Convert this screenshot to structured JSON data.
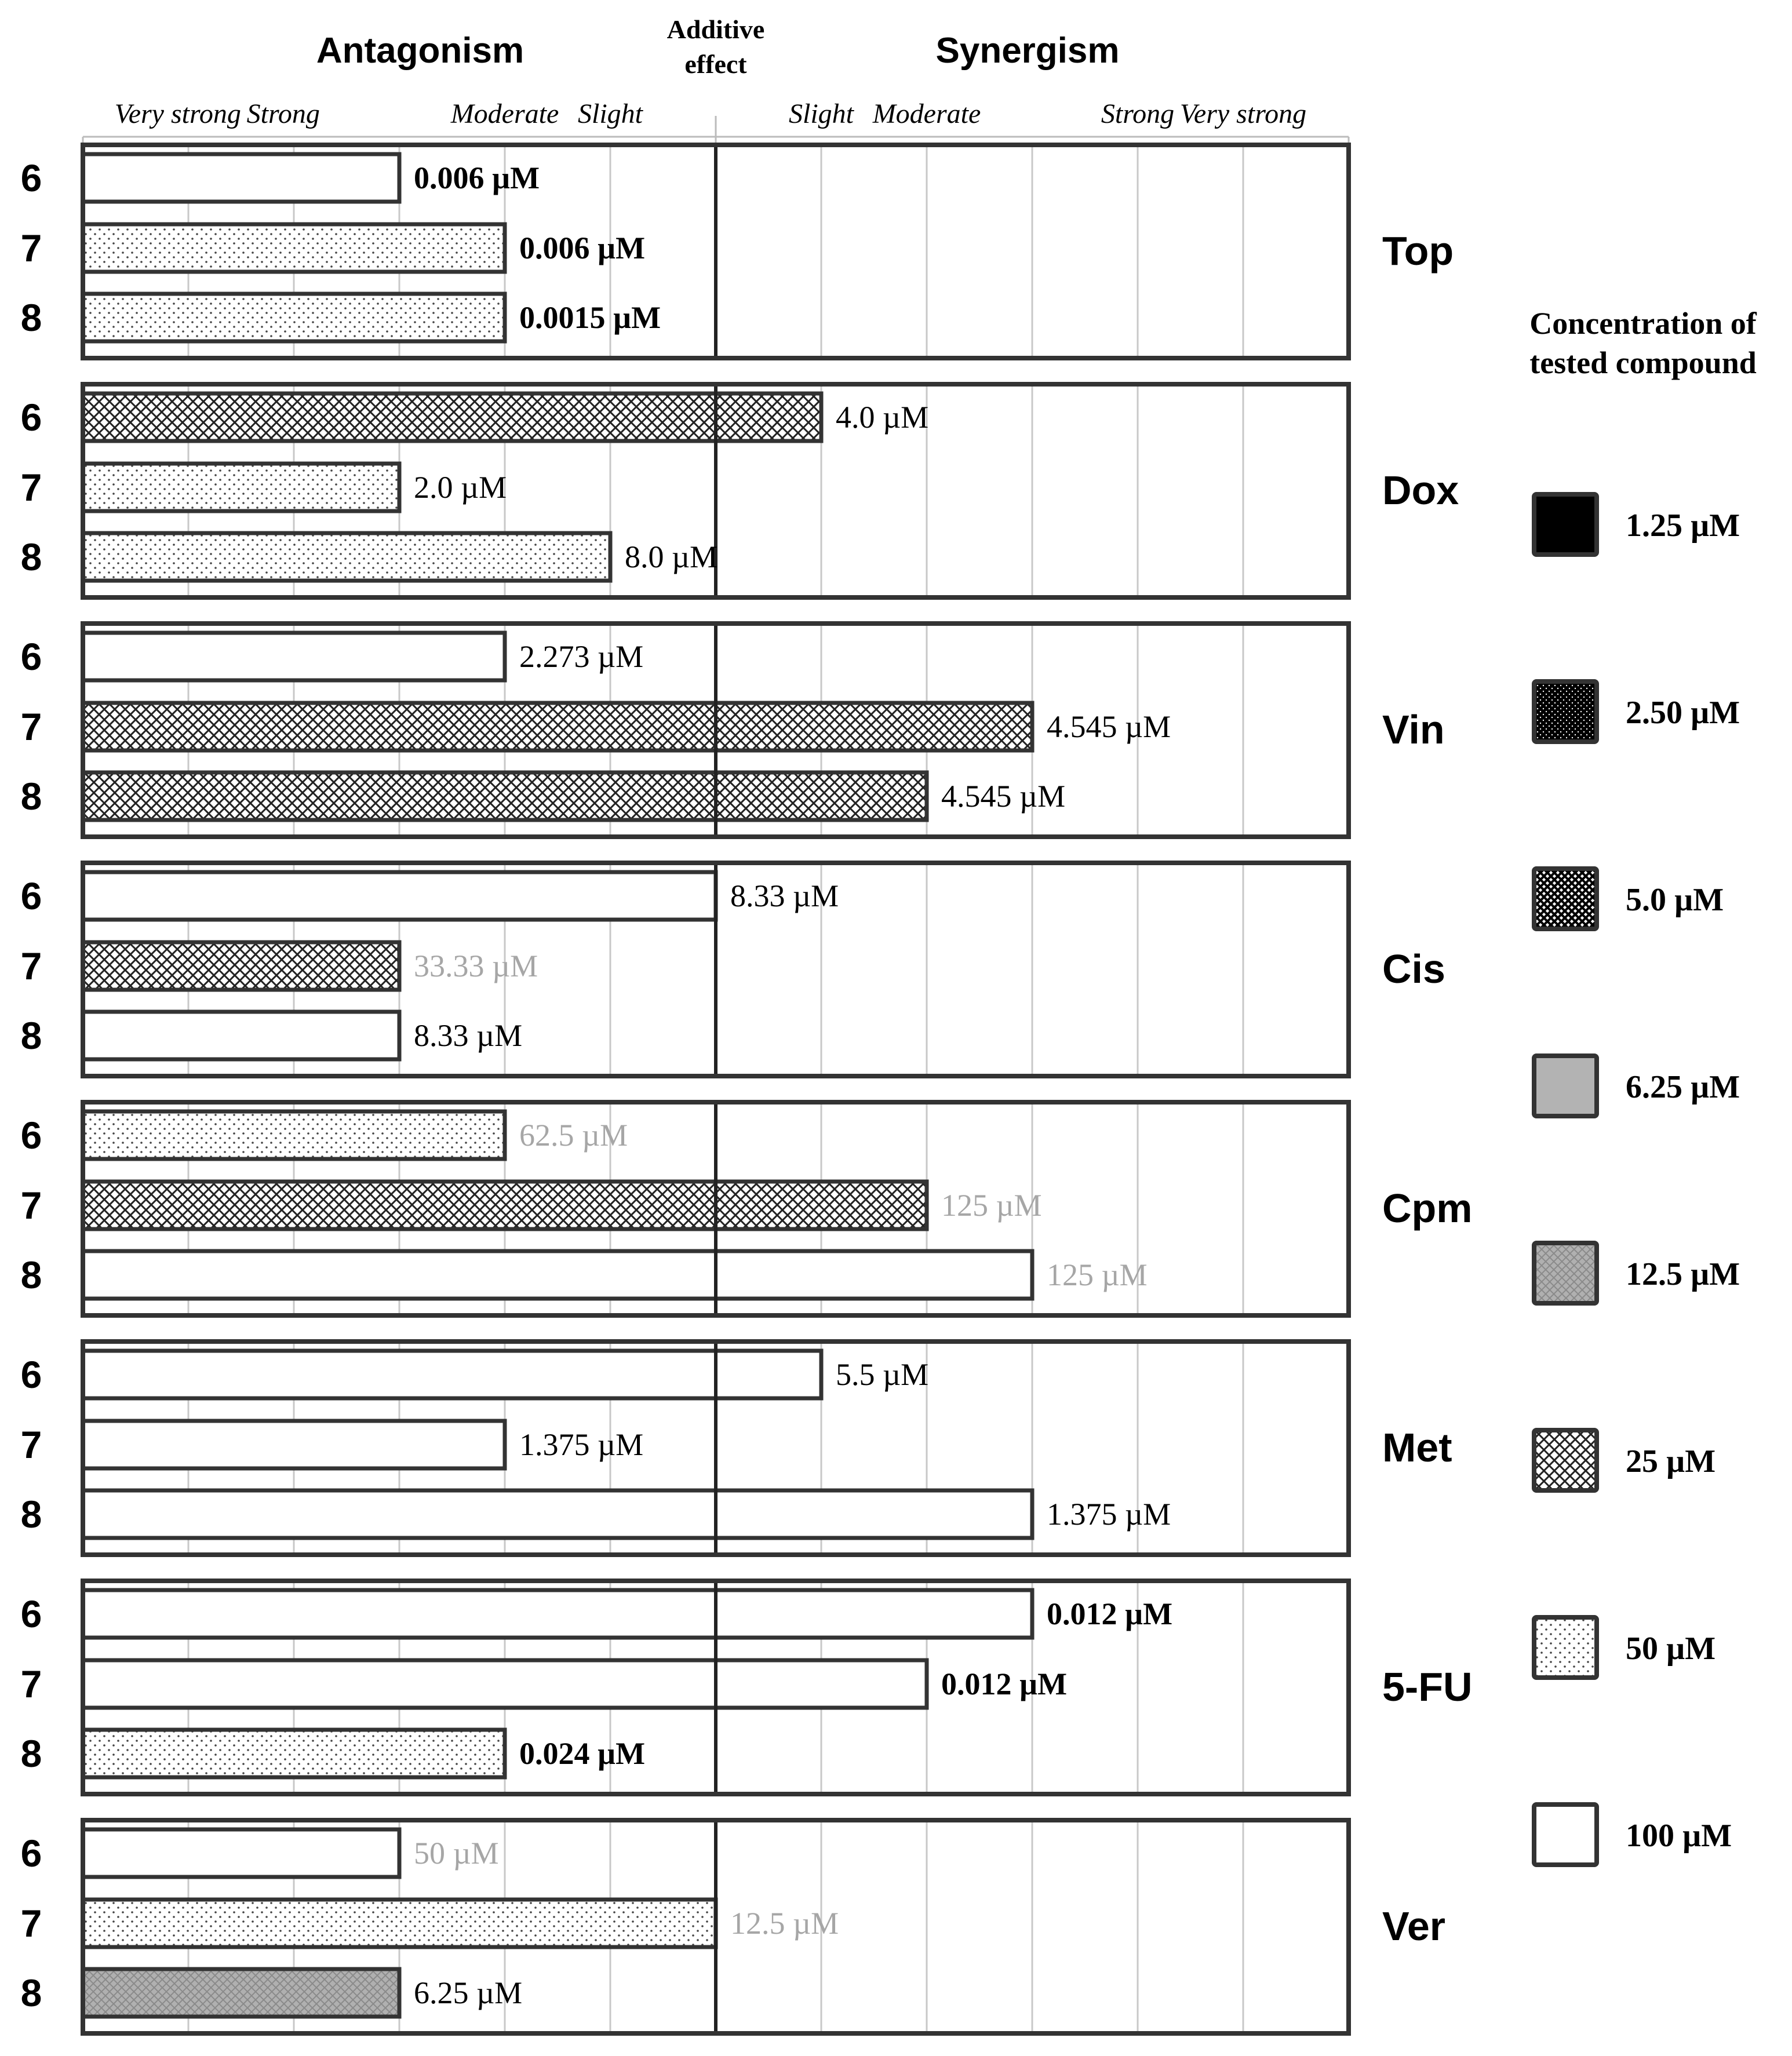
{
  "chart_data": {
    "type": "bar",
    "orientation": "horizontal",
    "header": {
      "antagonism": "Antagonism",
      "additive_line1": "Additive",
      "additive_line2": "effect",
      "synergism": "Synergism"
    },
    "scale_labels": [
      "Very strong",
      "Strong",
      "Moderate",
      "Slight",
      "Slight",
      "Moderate",
      "Strong",
      "Very strong"
    ],
    "scale_positions": [
      0.9,
      1.9,
      4.0,
      5.0,
      7.0,
      8.0,
      10.0,
      11.0
    ],
    "x_range": [
      0,
      12
    ],
    "additive_position": 6,
    "legend": {
      "title_line1": "Concentration of",
      "title_line2": "tested compound",
      "items": [
        {
          "label": "1.25 µM",
          "pattern": "solid-black"
        },
        {
          "label": "2.50 µM",
          "pattern": "black-speckle"
        },
        {
          "label": "5.0 µM",
          "pattern": "crosshatch-dark"
        },
        {
          "label": "6.25 µM",
          "pattern": "solid-gray"
        },
        {
          "label": "12.5 µM",
          "pattern": "crosshatch-gray"
        },
        {
          "label": "25 µM",
          "pattern": "crosshatch"
        },
        {
          "label": "50 µM",
          "pattern": "dots"
        },
        {
          "label": "100 µM",
          "pattern": "white"
        }
      ]
    },
    "groups": [
      {
        "drug": "Top",
        "bars": [
          {
            "compound": "6",
            "value": 3,
            "pattern": "white",
            "label": "0.006 µM",
            "label_style": "bold"
          },
          {
            "compound": "7",
            "value": 4,
            "pattern": "dots",
            "label": "0.006 µM",
            "label_style": "bold"
          },
          {
            "compound": "8",
            "value": 4,
            "pattern": "dots",
            "label": "0.0015 µM",
            "label_style": "bold"
          }
        ]
      },
      {
        "drug": "Dox",
        "bars": [
          {
            "compound": "6",
            "value": 7,
            "pattern": "crosshatch",
            "label": "4.0 µM",
            "label_style": "normal"
          },
          {
            "compound": "7",
            "value": 3,
            "pattern": "dots",
            "label": "2.0 µM",
            "label_style": "normal"
          },
          {
            "compound": "8",
            "value": 5,
            "pattern": "dots",
            "label": "8.0  µM",
            "label_style": "normal"
          }
        ]
      },
      {
        "drug": "Vin",
        "bars": [
          {
            "compound": "6",
            "value": 4,
            "pattern": "white",
            "label": "2.273 µM",
            "label_style": "normal"
          },
          {
            "compound": "7",
            "value": 9,
            "pattern": "crosshatch",
            "label": "4.545 µM",
            "label_style": "normal"
          },
          {
            "compound": "8",
            "value": 8,
            "pattern": "crosshatch",
            "label": "4.545 µM",
            "label_style": "normal"
          }
        ]
      },
      {
        "drug": "Cis",
        "bars": [
          {
            "compound": "6",
            "value": 6,
            "pattern": "white",
            "label": "8.33 µM",
            "label_style": "normal"
          },
          {
            "compound": "7",
            "value": 3,
            "pattern": "crosshatch",
            "label": "33.33 µM",
            "label_style": "gray"
          },
          {
            "compound": "8",
            "value": 3,
            "pattern": "white",
            "label": "8.33 µM",
            "label_style": "normal"
          }
        ]
      },
      {
        "drug": "Cpm",
        "bars": [
          {
            "compound": "6",
            "value": 4,
            "pattern": "dots",
            "label": "62.5 µM",
            "label_style": "gray"
          },
          {
            "compound": "7",
            "value": 8,
            "pattern": "crosshatch",
            "label": "125 µM",
            "label_style": "gray"
          },
          {
            "compound": "8",
            "value": 9,
            "pattern": "white",
            "label": "125 µM",
            "label_style": "gray"
          }
        ]
      },
      {
        "drug": "Met",
        "bars": [
          {
            "compound": "6",
            "value": 7,
            "pattern": "white",
            "label": "5.5 µM",
            "label_style": "normal"
          },
          {
            "compound": "7",
            "value": 4,
            "pattern": "white",
            "label": "1.375 µM",
            "label_style": "normal"
          },
          {
            "compound": "8",
            "value": 9,
            "pattern": "white",
            "label": "1.375 µM",
            "label_style": "normal"
          }
        ]
      },
      {
        "drug": "5-FU",
        "bars": [
          {
            "compound": "6",
            "value": 9,
            "pattern": "white",
            "label": "0.012 µM",
            "label_style": "bold"
          },
          {
            "compound": "7",
            "value": 8,
            "pattern": "white",
            "label": "0.012 µM",
            "label_style": "bold"
          },
          {
            "compound": "8",
            "value": 4,
            "pattern": "dots",
            "label": "0.024 µM",
            "label_style": "bold"
          }
        ]
      },
      {
        "drug": "Ver",
        "bars": [
          {
            "compound": "6",
            "value": 3,
            "pattern": "white",
            "label": "50 µM",
            "label_style": "gray"
          },
          {
            "compound": "7",
            "value": 6,
            "pattern": "dots",
            "label": "12.5 µM",
            "label_style": "gray"
          },
          {
            "compound": "8",
            "value": 3,
            "pattern": "crosshatch-gray",
            "label": "6.25 µM",
            "label_style": "normal"
          }
        ]
      }
    ]
  }
}
